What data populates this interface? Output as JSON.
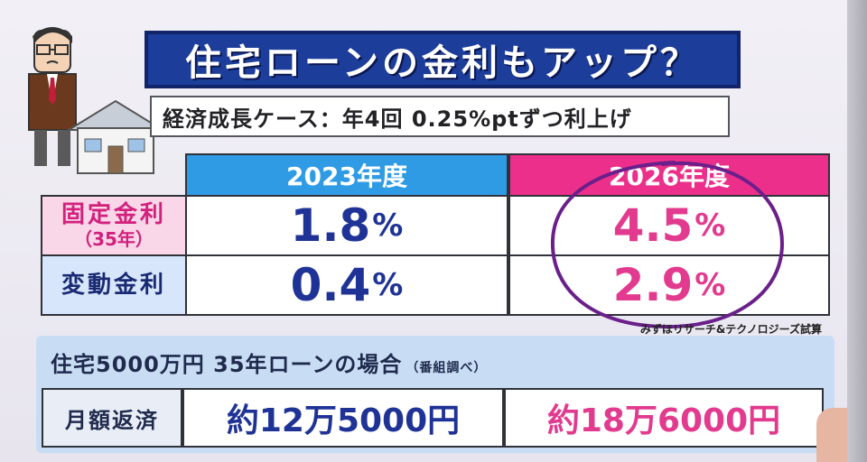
{
  "title": "住宅ローンの金利もアップ？",
  "subtitle": "経済成長ケース：年4回 0.25%ptずつ利上げ",
  "table": {
    "columns": [
      "2023年度",
      "2026年度"
    ],
    "rows": [
      {
        "label": "固定金利",
        "sublabel": "（35年）",
        "v2023": "1.8",
        "v2026": "4.5",
        "unit": "%"
      },
      {
        "label": "変動金利",
        "v2023": "0.4",
        "v2026": "2.9",
        "unit": "%"
      }
    ]
  },
  "source": "みずほリサーチ&テクノロジーズ試算",
  "loan": {
    "title": "住宅5000万円 35年ローンの場合",
    "note": "（番組調べ）",
    "row_label": "月額返済",
    "v2023": "約12万5000円",
    "v2026": "約18万6000円"
  },
  "colors": {
    "title_bg": "#1c3d9a",
    "header_2023": "#2f9be4",
    "header_2026": "#ec2f8a",
    "value_2023": "#1f3396",
    "value_2026": "#e23a8e",
    "circle": "#6a1f8a"
  }
}
